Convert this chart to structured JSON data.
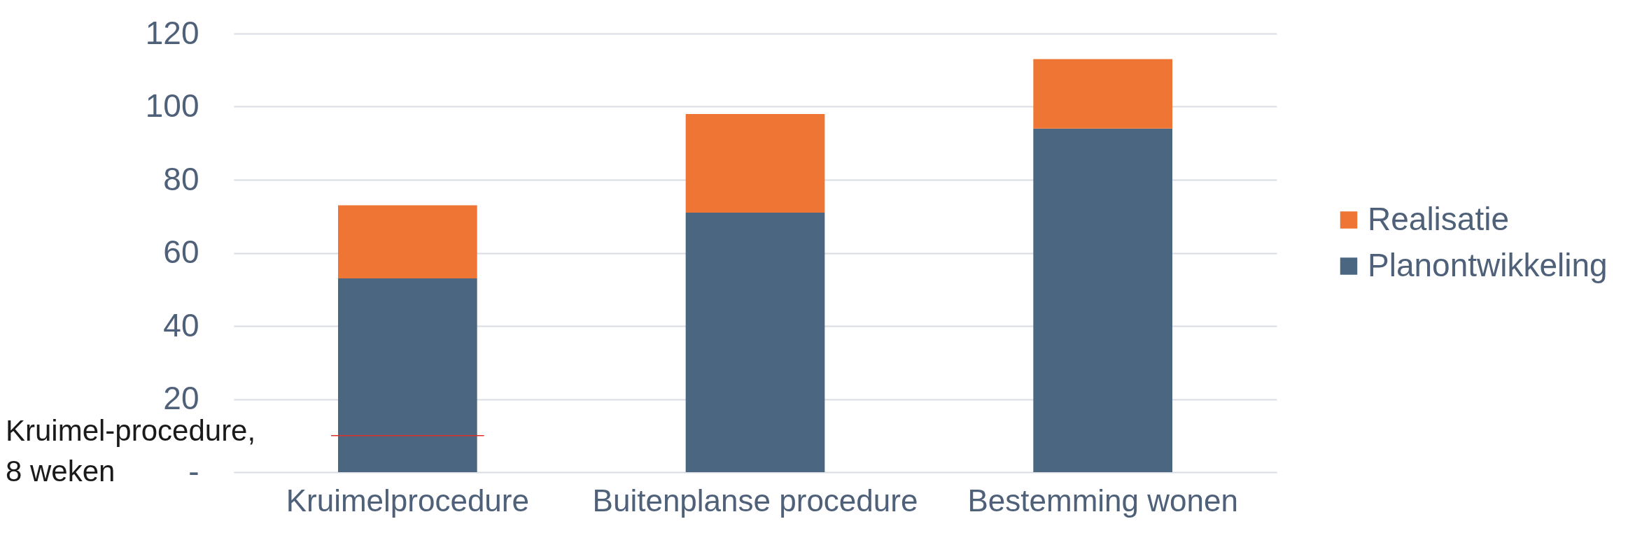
{
  "chart_data": {
    "type": "bar",
    "stacked": true,
    "categories": [
      "Kruimelprocedure",
      "Buitenplanse procedure",
      "Bestemming wonen"
    ],
    "series": [
      {
        "name": "Planontwikkeling",
        "color": "#4b6680",
        "values": [
          53,
          71,
          94
        ]
      },
      {
        "name": "Realisatie",
        "color": "#ee7533",
        "values": [
          20,
          27,
          19
        ]
      }
    ],
    "ylim": [
      0,
      120
    ],
    "yticks": [
      {
        "value": 0,
        "label": "-"
      },
      20,
      40,
      60,
      80,
      100,
      120
    ],
    "grid": "y",
    "legend": "right",
    "ref_lines": [
      {
        "axis": "y",
        "value": 10,
        "label": "Kruimel-procedure,\n8 weken",
        "color": "#e0302a"
      }
    ]
  }
}
